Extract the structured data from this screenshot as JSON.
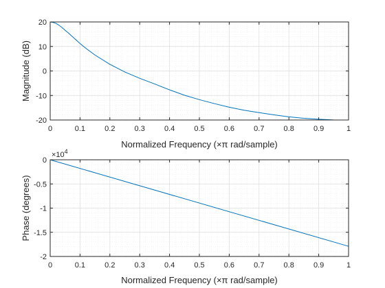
{
  "colors": {
    "line": "#0072bd",
    "axis": "#262626",
    "grid_major": "#dcdcdc",
    "grid_minor": "#ececec",
    "background": "#ffffff"
  },
  "chart_data": [
    {
      "type": "line",
      "xlabel": "Normalized Frequency  (×π rad/sample)",
      "ylabel": "Magnitude (dB)",
      "xlim": [
        0,
        1
      ],
      "ylim": [
        -20,
        20
      ],
      "xticks": [
        0,
        0.1,
        0.2,
        0.3,
        0.4,
        0.5,
        0.6,
        0.7,
        0.8,
        0.9,
        1
      ],
      "xtick_labels": [
        "0",
        "0.1",
        "0.2",
        "0.3",
        "0.4",
        "0.5",
        "0.6",
        "0.7",
        "0.8",
        "0.9",
        "1"
      ],
      "yticks": [
        20,
        10,
        0,
        -10,
        -20
      ],
      "ytick_labels": [
        "20",
        "10",
        "0",
        "-10",
        "-20"
      ],
      "grid": "major and minor",
      "series": [
        {
          "x": [
            0,
            0.01,
            0.02,
            0.03,
            0.04,
            0.05,
            0.06,
            0.08,
            0.1,
            0.12,
            0.15,
            0.2,
            0.25,
            0.3,
            0.35,
            0.4,
            0.45,
            0.5,
            0.55,
            0.6,
            0.65,
            0.7,
            0.75,
            0.8,
            0.85,
            0.9,
            0.95,
            1
          ],
          "y": [
            20,
            19.8,
            19.4,
            18.6,
            17.7,
            16.6,
            15.6,
            13.4,
            11.2,
            9.2,
            6.5,
            2.7,
            -0.4,
            -3.0,
            -5.3,
            -7.7,
            -9.9,
            -11.7,
            -13.3,
            -14.8,
            -16.0,
            -17.0,
            -17.9,
            -18.7,
            -19.3,
            -19.7,
            -19.95,
            -20
          ]
        }
      ]
    },
    {
      "type": "line",
      "xlabel": "Normalized Frequency  (×π rad/sample)",
      "ylabel": "Phase (degrees)",
      "xlim": [
        0,
        1
      ],
      "ylim": [
        -2,
        0
      ],
      "xticks": [
        0,
        0.1,
        0.2,
        0.3,
        0.4,
        0.5,
        0.6,
        0.7,
        0.8,
        0.9,
        1
      ],
      "xtick_labels": [
        "0",
        "0.1",
        "0.2",
        "0.3",
        "0.4",
        "0.5",
        "0.6",
        "0.7",
        "0.8",
        "0.9",
        "1"
      ],
      "yticks": [
        0,
        -0.5,
        -1,
        -1.5,
        -2
      ],
      "ytick_labels": [
        "0",
        "-0.5",
        "-1",
        "-1.5",
        "-2"
      ],
      "exponent_base": "×10",
      "exponent_power": "4",
      "grid": "major and minor",
      "series": [
        {
          "x": [
            0,
            1
          ],
          "y": [
            0,
            -1.79
          ]
        }
      ]
    }
  ]
}
